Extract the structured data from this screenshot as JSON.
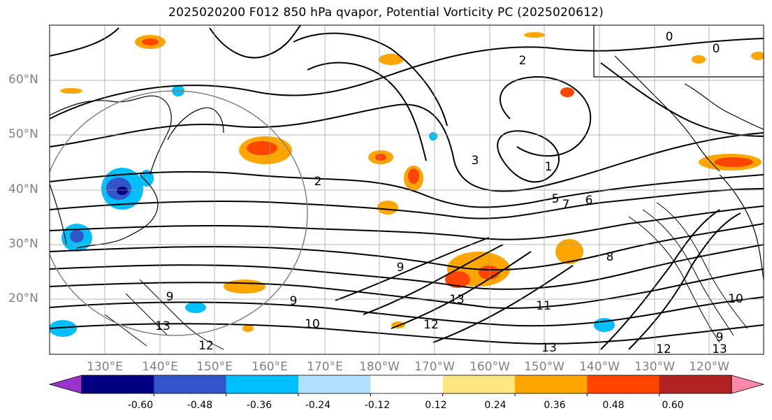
{
  "title": "2025020200 F012 850 hPa qvapor, Potential Vorticity PC (2025020612)",
  "lat_labels": [
    "60°N",
    "50°N",
    "40°N",
    "30°N",
    "20°N"
  ],
  "lon_labels": [
    "130°E",
    "140°E",
    "150°E",
    "160°E",
    "170°E",
    "180°W",
    "170°W",
    "160°W",
    "150°W",
    "140°W",
    "130°W",
    "120°W"
  ],
  "colorbar": {
    "ticks": [
      "-0.60",
      "-0.48",
      "-0.36",
      "-0.24",
      "-0.12",
      "0.12",
      "0.24",
      "0.36",
      "0.48",
      "0.60"
    ],
    "colors": [
      "#9933cc",
      "#000080",
      "#3355cc",
      "#00bfff",
      "#b0e0ff",
      "#ffffff",
      "#ffe680",
      "#ffa500",
      "#ff4500",
      "#b22222",
      "#ff88aa"
    ]
  },
  "contour_labels": [
    "2",
    "2",
    "1",
    "0",
    "0",
    "3",
    "7",
    "6",
    "5",
    "9",
    "9",
    "8",
    "10",
    "11",
    "12",
    "13",
    "13",
    "10",
    "9",
    "9",
    "13",
    "12",
    "12",
    "13"
  ]
}
